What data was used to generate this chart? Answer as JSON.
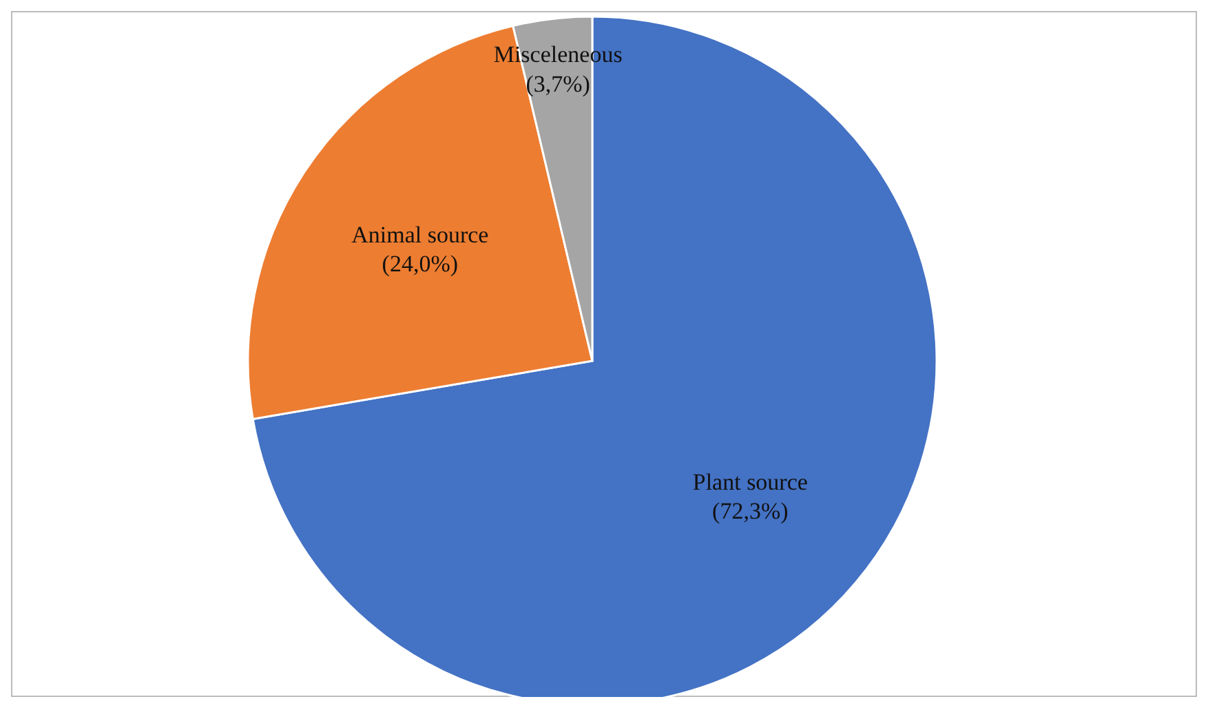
{
  "chart_data": {
    "type": "pie",
    "categories": [
      "Plant source",
      "Animal source",
      "Misceleneous"
    ],
    "values": [
      72.3,
      24.0,
      3.7
    ],
    "colors": [
      "#4472c4",
      "#ed7d31",
      "#a5a5a5"
    ],
    "value_labels": [
      "(72,3%)",
      "(24,0%)",
      "(3,7%)"
    ]
  }
}
